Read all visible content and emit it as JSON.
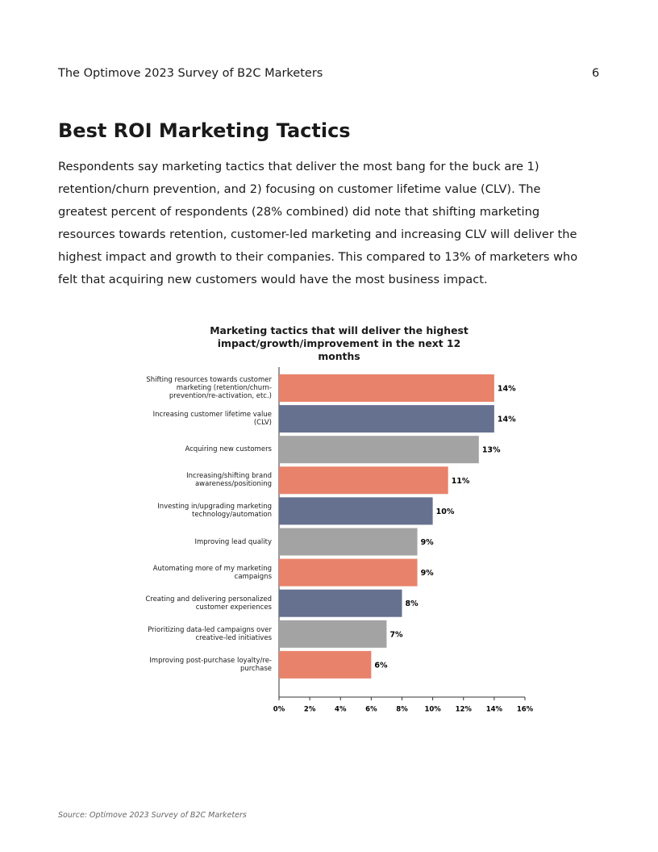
{
  "header": {
    "title": "The Optimove 2023 Survey of B2C Marketers",
    "page_number": "6"
  },
  "section_title": "Best ROI Marketing Tactics",
  "paragraph": "Respondents say marketing tactics that deliver the most bang for the buck are 1) retention/churn prevention, and 2) focusing on customer lifetime value (CLV). The greatest percent of respondents (28% combined) did note that shifting marketing resources towards retention, customer-led marketing and increasing CLV will deliver the highest impact and growth to their companies. This compared to 13% of marketers who felt that acquiring new customers would have the most business impact.",
  "chart_data": {
    "type": "hbar",
    "title": "Marketing tactics that will deliver the highest impact/growth/improvement in the next 12 months",
    "categories": [
      "Shifting resources towards customer marketing (retention/churn-prevention/re-activation, etc.)",
      "Increasing customer lifetime value (CLV)",
      "Acquiring new customers",
      "Increasing/shifting brand awareness/positioning",
      "Investing in/upgrading marketing technology/automation",
      "Improving lead quality",
      "Automating more of my marketing campaigns",
      "Creating and delivering personalized customer experiences",
      "Prioritizing data-led campaigns over creative-led initiatives",
      "Improving post-purchase loyalty/re-purchase"
    ],
    "values": [
      14,
      14,
      13,
      11,
      10,
      9,
      9,
      8,
      7,
      6
    ],
    "value_labels": [
      "14%",
      "14%",
      "13%",
      "11%",
      "10%",
      "9%",
      "9%",
      "8%",
      "7%",
      "6%"
    ],
    "colors": [
      "#e8826a",
      "#66718f",
      "#a3a3a3",
      "#e8826a",
      "#66718f",
      "#a3a3a3",
      "#e8826a",
      "#66718f",
      "#a3a3a3",
      "#e8826a"
    ],
    "xlim": [
      0,
      16
    ],
    "xticks": [
      {
        "value": 0,
        "label": "0%"
      },
      {
        "value": 2,
        "label": "2%"
      },
      {
        "value": 4,
        "label": "4%"
      },
      {
        "value": 6,
        "label": "6%"
      },
      {
        "value": 8,
        "label": "8%"
      },
      {
        "value": 10,
        "label": "10%"
      },
      {
        "value": 12,
        "label": "12%"
      },
      {
        "value": 14,
        "label": "14%"
      },
      {
        "value": 16,
        "label": "16%"
      }
    ]
  },
  "source": "Source: Optimove 2023 Survey of B2C Marketers"
}
